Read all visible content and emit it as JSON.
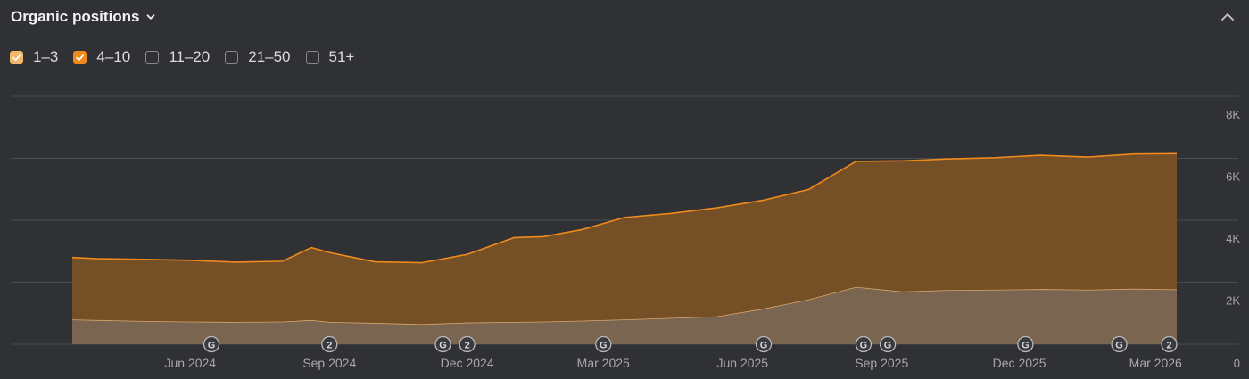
{
  "header": {
    "title": "Organic positions"
  },
  "filters": [
    {
      "label": "1–3",
      "checked": true,
      "color": "#f5b769"
    },
    {
      "label": "4–10",
      "checked": true,
      "color": "#f08a1c"
    },
    {
      "label": "11–20",
      "checked": false,
      "color": ""
    },
    {
      "label": "21–50",
      "checked": false,
      "color": ""
    },
    {
      "label": "51+",
      "checked": false,
      "color": ""
    }
  ],
  "chart_data": {
    "type": "area",
    "stacked": true,
    "x": [
      "2024-03-15",
      "2024-04-01",
      "2024-05-01",
      "2024-06-01",
      "2024-07-01",
      "2024-08-01",
      "2024-08-20",
      "2024-09-01",
      "2024-10-01",
      "2024-11-01",
      "2024-12-01",
      "2025-01-01",
      "2025-01-20",
      "2025-02-15",
      "2025-03-15",
      "2025-04-15",
      "2025-05-15",
      "2025-06-15",
      "2025-07-15",
      "2025-08-15",
      "2025-09-15",
      "2025-10-15",
      "2025-11-15",
      "2025-12-15",
      "2026-01-15",
      "2026-02-15",
      "2026-03-15"
    ],
    "series": [
      {
        "color": "#7a6550",
        "values": [
          800,
          780,
          750,
          730,
          720,
          730,
          780,
          720,
          690,
          650,
          700,
          720,
          730,
          760,
          800,
          850,
          900,
          1150,
          1450,
          1850,
          1700,
          1750,
          1760,
          1780,
          1760,
          1790,
          1770
        ]
      },
      {
        "color": "#754f26",
        "values": [
          2000,
          1980,
          1990,
          1980,
          1930,
          1950,
          2340,
          2240,
          1970,
          1980,
          2200,
          2720,
          2740,
          2940,
          3290,
          3370,
          3500,
          3500,
          3550,
          4050,
          4220,
          4230,
          4260,
          4320,
          4280,
          4350,
          4380
        ]
      }
    ],
    "ylim": [
      0,
      8000
    ],
    "yticks": [
      "8K",
      "6K",
      "4K",
      "2K",
      "0"
    ],
    "xticks": [
      "Jun 2024",
      "Sep 2024",
      "Dec 2024",
      "Mar 2025",
      "Jun 2025",
      "Sep 2025",
      "Dec 2025",
      "Mar 2026"
    ],
    "events": [
      {
        "date": "2024-06-15",
        "label": "G"
      },
      {
        "date": "2024-09-01",
        "label": "2"
      },
      {
        "date": "2024-11-15",
        "label": "G"
      },
      {
        "date": "2024-12-01",
        "label": "2"
      },
      {
        "date": "2025-03-01",
        "label": "G"
      },
      {
        "date": "2025-06-15",
        "label": "G"
      },
      {
        "date": "2025-08-20",
        "label": "G"
      },
      {
        "date": "2025-09-05",
        "label": "G"
      },
      {
        "date": "2025-12-05",
        "label": "G"
      },
      {
        "date": "2026-02-05",
        "label": "G"
      },
      {
        "date": "2026-03-10",
        "label": "2"
      }
    ],
    "grid": true
  }
}
